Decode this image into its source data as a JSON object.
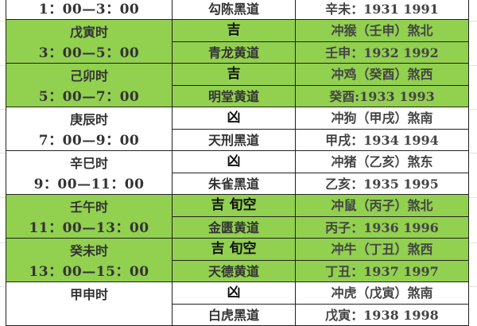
{
  "colors": {
    "auspicious_fill": "#92d050",
    "inauspicious_fill": "#ffffff"
  },
  "rows": [
    {
      "name": "",
      "time": "1：00—3：00",
      "luck": "",
      "clash": "",
      "deity": "勾陈黑道",
      "years": "辛未：1931 1991",
      "green": false
    },
    {
      "name": "戊寅时",
      "time": "3：00—5：00",
      "luck": "吉",
      "clash": "冲猴（壬申）煞北",
      "deity": "青龙黄道",
      "years": "壬申：1932 1992",
      "green": true
    },
    {
      "name": "己卯时",
      "time": "5：00—7：00",
      "luck": "吉",
      "clash": "冲鸡（癸酉）煞西",
      "deity": "明堂黄道",
      "years": "癸酉:1933 1993",
      "green": true
    },
    {
      "name": "庚辰时",
      "time": "7：00—9：00",
      "luck": "凶",
      "clash": "冲狗（甲戌）煞南",
      "deity": "天刑黑道",
      "years": "甲戌：1934 1994",
      "green": false
    },
    {
      "name": "辛巳时",
      "time": "9：00—11：00",
      "luck": "凶",
      "clash": "冲猪（乙亥）煞东",
      "deity": "朱雀黑道",
      "years": "乙亥：1935 1995",
      "green": false
    },
    {
      "name": "壬午时",
      "time": "11：00—13：00",
      "luck": "吉 旬空",
      "clash": "冲鼠（丙子）煞北",
      "deity": "金匮黄道",
      "years": "丙子：1936 1996",
      "green": true
    },
    {
      "name": "癸未时",
      "time": "13：00—15：00",
      "luck": "吉 旬空",
      "clash": "冲牛（丁丑）煞西",
      "deity": "天德黄道",
      "years": "丁丑：1937 1997",
      "green": true
    },
    {
      "name": "甲申时",
      "time": "",
      "luck": "凶",
      "clash": "冲虎（戊寅）煞南",
      "deity": "白虎黑道",
      "years": "戊寅：1938 1998",
      "green": false
    }
  ]
}
